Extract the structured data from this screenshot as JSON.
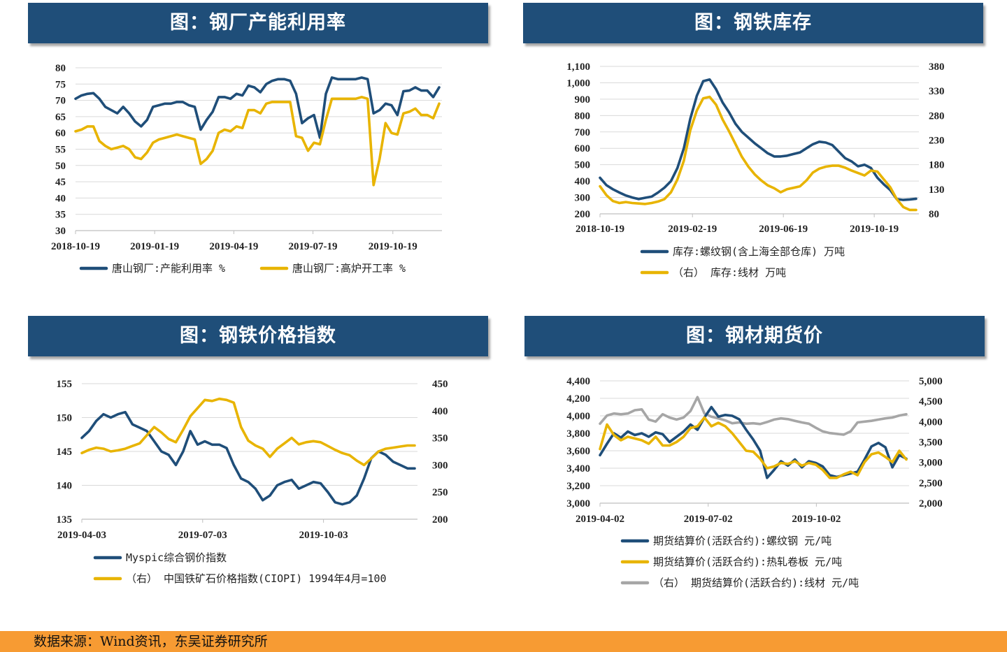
{
  "footer": {
    "source": "数据来源：Wind资讯，东吴证券研究所"
  },
  "colors": {
    "navy": "#1f4e79",
    "gold": "#e8b400",
    "gray": "#a6a6a6",
    "grid": "#d9d9d9",
    "banner": "#1f4e79",
    "footer": "#f79b33"
  },
  "chart_data": [
    {
      "id": "chart1",
      "type": "line",
      "title": "图：钢厂产能利用率",
      "xticks": [
        "2018-10-19",
        "2019-01-19",
        "2019-04-19",
        "2019-07-19",
        "2019-10-19"
      ],
      "yticks": [
        "80",
        "75",
        "70",
        "65",
        "60",
        "55",
        "50",
        "45",
        "40",
        "35",
        "30"
      ],
      "ylim": [
        30,
        80
      ],
      "series": [
        {
          "name": "唐山钢厂:产能利用率  %",
          "color": "navy",
          "axis": "left",
          "values": [
            70.5,
            71.5,
            72,
            72.2,
            70.5,
            68,
            67,
            66,
            68,
            66,
            63.5,
            62,
            64,
            68,
            68.5,
            69,
            69,
            69.5,
            69.5,
            68.5,
            68,
            61,
            64,
            66.5,
            71,
            71,
            70.5,
            72,
            71.5,
            74.5,
            74,
            72.5,
            75,
            76,
            76.5,
            76.5,
            76,
            72,
            63,
            64.5,
            65.5,
            58.5,
            72,
            77,
            76.5,
            76.5,
            76.5,
            76.5,
            77,
            76.5,
            66,
            67,
            69,
            68.5,
            65.5,
            72.8,
            73,
            74,
            73,
            73,
            71,
            74
          ]
        },
        {
          "name": "唐山钢厂:高炉开工率  %",
          "color": "gold",
          "axis": "left",
          "values": [
            60.5,
            61,
            62,
            62,
            57.5,
            56,
            55,
            55.5,
            56,
            55,
            52.5,
            52,
            54,
            57,
            58,
            58.5,
            59,
            59.5,
            59,
            58.5,
            58,
            50.5,
            52,
            54.5,
            60,
            61,
            60.5,
            62,
            61.5,
            67,
            67,
            66,
            69,
            69.5,
            69.5,
            69.5,
            69.5,
            59,
            58.5,
            54.5,
            57,
            56.5,
            64,
            70.5,
            70.5,
            70.5,
            70.5,
            70.5,
            71,
            70.5,
            44,
            52,
            63,
            60,
            59.5,
            66,
            66.5,
            67.5,
            65.5,
            65.5,
            64.5,
            69
          ]
        }
      ]
    },
    {
      "id": "chart2",
      "type": "line",
      "title": "图：钢铁库存",
      "xticks": [
        "2018-10-19",
        "2019-02-19",
        "2019-06-19",
        "2019-10-19"
      ],
      "yticks": [
        "1,100",
        "1,000",
        "900",
        "800",
        "700",
        "600",
        "500",
        "400",
        "300",
        "200"
      ],
      "yticks_right": [
        "380",
        "330",
        "280",
        "230",
        "180",
        "130",
        "80"
      ],
      "ylim": [
        200,
        1100
      ],
      "ylim_right": [
        80,
        380
      ],
      "series": [
        {
          "name": "库存:螺纹钢(含上海全部仓库)  万吨",
          "color": "navy",
          "axis": "left",
          "values": [
            420,
            375,
            350,
            330,
            312,
            300,
            290,
            298,
            305,
            330,
            360,
            400,
            480,
            600,
            780,
            920,
            1010,
            1020,
            960,
            880,
            820,
            750,
            700,
            665,
            630,
            600,
            570,
            550,
            550,
            555,
            565,
            575,
            600,
            625,
            640,
            635,
            620,
            580,
            540,
            520,
            490,
            500,
            480,
            420,
            380,
            345,
            290,
            285,
            288,
            292
          ]
        },
        {
          "name": "（右）  库存:线材  万吨",
          "color": "gold",
          "axis": "right",
          "values": [
            136,
            118,
            106,
            102,
            104,
            102,
            101,
            100,
            102,
            105,
            110,
            124,
            150,
            188,
            250,
            290,
            315,
            318,
            302,
            272,
            248,
            222,
            196,
            176,
            160,
            148,
            138,
            132,
            124,
            130,
            133,
            136,
            148,
            164,
            172,
            176,
            178,
            178,
            174,
            168,
            163,
            158,
            168,
            166,
            150,
            134,
            110,
            94,
            88,
            88
          ]
        }
      ]
    },
    {
      "id": "chart3",
      "type": "line",
      "title": "图：钢铁价格指数",
      "xticks": [
        "2019-04-03",
        "2019-07-03",
        "2019-10-03"
      ],
      "yticks": [
        "155",
        "150",
        "145",
        "140",
        "135"
      ],
      "yticks_right": [
        "450",
        "400",
        "350",
        "300",
        "250",
        "200"
      ],
      "ylim": [
        135,
        155
      ],
      "ylim_right": [
        200,
        450
      ],
      "series": [
        {
          "name": "Myspic综合钢价指数",
          "color": "navy",
          "axis": "left",
          "values": [
            147,
            148,
            149.5,
            150.5,
            150,
            150.5,
            150.8,
            149,
            148.5,
            148,
            146.5,
            145,
            144.5,
            143,
            145,
            148,
            146,
            146.5,
            146,
            146,
            145.5,
            143,
            141,
            140.5,
            139.5,
            137.8,
            138.5,
            140,
            140.5,
            140.8,
            139.5,
            140,
            140.5,
            140.3,
            139,
            137.5,
            137.2,
            137.5,
            138.5,
            141,
            144,
            145,
            144.5,
            143.5,
            143,
            142.5,
            142.5
          ]
        },
        {
          "name": "（右）  中国铁矿石价格指数(CIOPI)  1994年4月=100",
          "color": "gold",
          "axis": "right",
          "values": [
            322,
            328,
            332,
            330,
            325,
            327,
            330,
            335,
            340,
            355,
            370,
            360,
            348,
            342,
            365,
            390,
            405,
            420,
            418,
            422,
            420,
            415,
            370,
            345,
            336,
            330,
            315,
            330,
            340,
            350,
            338,
            342,
            344,
            342,
            335,
            328,
            322,
            318,
            308,
            300,
            312,
            325,
            330,
            332,
            334,
            336,
            336
          ]
        }
      ]
    },
    {
      "id": "chart4",
      "type": "line",
      "title": "图：钢材期货价",
      "xticks": [
        "2019-04-02",
        "2019-07-02",
        "2019-10-02"
      ],
      "yticks": [
        "4,400",
        "4,200",
        "4,000",
        "3,800",
        "3,600",
        "3,400",
        "3,200",
        "3,000"
      ],
      "yticks_right": [
        "5,000",
        "4,500",
        "4,000",
        "3,500",
        "3,000",
        "2,500",
        "2,000"
      ],
      "ylim": [
        3000,
        4400
      ],
      "ylim_right": [
        2000,
        5000
      ],
      "series": [
        {
          "name": "期货结算价(活跃合约):螺纹钢  元/吨",
          "color": "navy",
          "axis": "left",
          "values": [
            3550,
            3680,
            3800,
            3750,
            3820,
            3780,
            3800,
            3760,
            3810,
            3790,
            3700,
            3760,
            3820,
            3900,
            3840,
            3980,
            4100,
            3990,
            4010,
            4000,
            3960,
            3840,
            3730,
            3600,
            3290,
            3380,
            3480,
            3430,
            3500,
            3410,
            3480,
            3460,
            3420,
            3320,
            3300,
            3320,
            3340,
            3360,
            3500,
            3650,
            3690,
            3640,
            3410,
            3550,
            3510
          ]
        },
        {
          "name": "期货结算价(活跃合约):热轧卷板  元/吨",
          "color": "gold",
          "axis": "left",
          "values": [
            3620,
            3900,
            3780,
            3720,
            3760,
            3740,
            3720,
            3680,
            3760,
            3660,
            3660,
            3700,
            3760,
            3860,
            3880,
            3980,
            3880,
            3920,
            3880,
            3800,
            3700,
            3600,
            3590,
            3510,
            3400,
            3420,
            3460,
            3450,
            3480,
            3430,
            3460,
            3440,
            3380,
            3290,
            3290,
            3330,
            3360,
            3320,
            3470,
            3560,
            3580,
            3530,
            3470,
            3600,
            3500
          ]
        },
        {
          "name": "（右）  期货结算价(活跃合约):线材  元/吨",
          "color": "gray",
          "axis": "right",
          "values": [
            3950,
            4150,
            4200,
            4180,
            4200,
            4280,
            4300,
            4050,
            4000,
            4180,
            4100,
            4050,
            4100,
            4260,
            4600,
            4200,
            4120,
            4080,
            4030,
            3960,
            3980,
            3950,
            3960,
            3940,
            3990,
            4050,
            4080,
            4060,
            4020,
            3980,
            3950,
            3850,
            3760,
            3720,
            3700,
            3680,
            3760,
            3980,
            4000,
            4020,
            4050,
            4080,
            4100,
            4150,
            4180
          ]
        }
      ]
    }
  ]
}
